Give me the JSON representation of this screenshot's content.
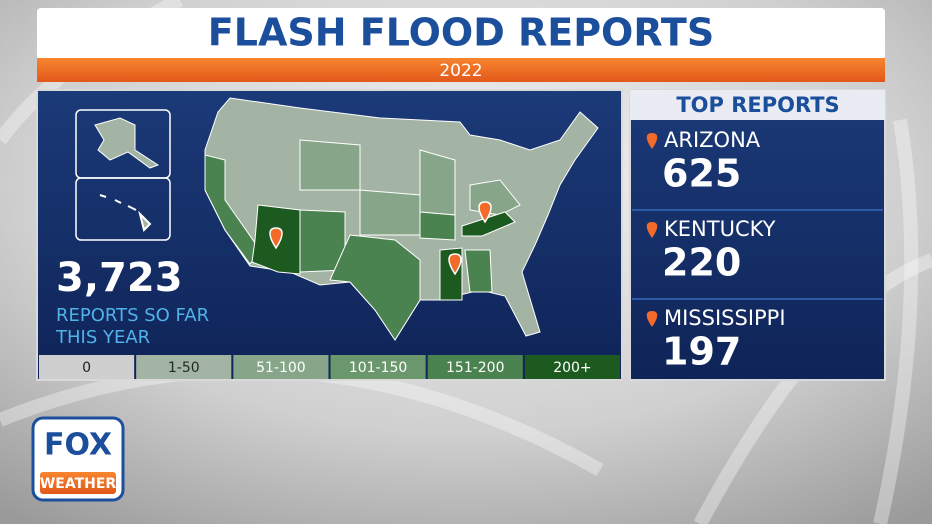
{
  "header": {
    "title": "FLASH FLOOD REPORTS",
    "subtitle": "2022"
  },
  "summary": {
    "total": "3,723",
    "label_lines": [
      "REPORTS SO FAR",
      "THIS YEAR"
    ]
  },
  "legend": {
    "items": [
      {
        "label": "0",
        "color": "#cfcfcf",
        "text_color": "#222222"
      },
      {
        "label": "1-50",
        "color": "#a3b3a4",
        "text_color": "#1e2a1e"
      },
      {
        "label": "51-100",
        "color": "#87a689",
        "text_color": "#ffffff"
      },
      {
        "label": "101-150",
        "color": "#6b976d",
        "text_color": "#ffffff"
      },
      {
        "label": "151-200",
        "color": "#4a8350",
        "text_color": "#ffffff"
      },
      {
        "label": "200+",
        "color": "#1d5a20",
        "text_color": "#ffffff"
      }
    ]
  },
  "top_reports": {
    "title": "TOP REPORTS",
    "items": [
      {
        "state": "ARIZONA",
        "count": "625"
      },
      {
        "state": "KENTUCKY",
        "count": "220"
      },
      {
        "state": "MISSISSIPPI",
        "count": "197"
      }
    ]
  },
  "logo": {
    "line1": "FOX",
    "line2": "WEATHER"
  }
}
